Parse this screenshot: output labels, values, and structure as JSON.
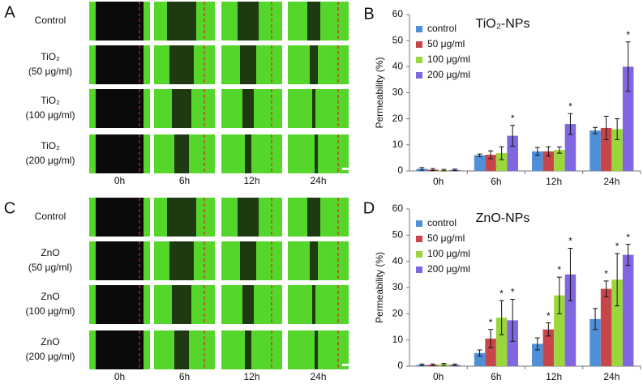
{
  "image_panels": [
    {
      "letter": "A",
      "rows": [
        [
          "Control"
        ],
        [
          "TiO₂",
          "(50 μg/ml)"
        ],
        [
          "TiO₂",
          "(100 μg/ml)"
        ],
        [
          "TiO₂",
          "(200 μg/ml)"
        ]
      ],
      "times": [
        "0h",
        "6h",
        "12h",
        "24h"
      ]
    },
    {
      "letter": "C",
      "rows": [
        [
          "Control"
        ],
        [
          "ZnO",
          "(50 μg/ml)"
        ],
        [
          "ZnO",
          "(100 μg/ml)"
        ],
        [
          "ZnO",
          "(200 μg/ml)"
        ]
      ],
      "times": [
        "0h",
        "6h",
        "12h",
        "24h"
      ]
    }
  ],
  "chart_data": [
    {
      "type": "bar",
      "letter": "B",
      "title": "TiO₂-NPs",
      "ylabel": "Permeability (%)",
      "categories": [
        "0h",
        "6h",
        "12h",
        "24h"
      ],
      "series": [
        {
          "name": "control",
          "color": "#4f8fd8",
          "values": [
            0.8,
            6,
            7.5,
            15.5
          ],
          "errors": [
            0.5,
            0.5,
            1.5,
            1.2
          ]
        },
        {
          "name": "50 μg/ml",
          "color": "#c8454a",
          "values": [
            0.5,
            6.2,
            7.5,
            16.5
          ],
          "errors": [
            0.4,
            1.5,
            1.8,
            4.5
          ]
        },
        {
          "name": "100 μg/ml",
          "color": "#9ad63c",
          "values": [
            0.3,
            6.8,
            8,
            16
          ],
          "errors": [
            0.3,
            2.5,
            1.2,
            4
          ]
        },
        {
          "name": "200 μg/ml",
          "color": "#8066e0",
          "values": [
            0.4,
            13.5,
            18,
            40
          ],
          "errors": [
            0.3,
            4,
            4,
            9.5
          ]
        }
      ],
      "annotations": [
        {
          "text": "*",
          "series": 3,
          "category": 1
        },
        {
          "text": "*",
          "series": 3,
          "category": 2
        },
        {
          "text": "*",
          "series": 3,
          "category": 3
        }
      ],
      "ylim": [
        0,
        60
      ],
      "yticks": [
        0,
        10,
        20,
        30,
        40,
        50,
        60
      ],
      "legend": "upper left"
    },
    {
      "type": "bar",
      "letter": "D",
      "title": "ZnO-NPs",
      "ylabel": "Permeability (%)",
      "categories": [
        "0h",
        "6h",
        "12h",
        "24h"
      ],
      "series": [
        {
          "name": "control",
          "color": "#4f8fd8",
          "values": [
            0.5,
            5,
            8.5,
            18
          ],
          "errors": [
            0.3,
            1.2,
            2.3,
            4
          ]
        },
        {
          "name": "50 μg/ml",
          "color": "#c8454a",
          "values": [
            0.5,
            10.5,
            14,
            29.5
          ],
          "errors": [
            0.3,
            3.5,
            2.5,
            3
          ]
        },
        {
          "name": "100 μg/ml",
          "color": "#9ad63c",
          "values": [
            0.7,
            18.5,
            27,
            33
          ],
          "errors": [
            0.4,
            6.5,
            7,
            10
          ]
        },
        {
          "name": "200 μg/ml",
          "color": "#8066e0",
          "values": [
            0.5,
            17.5,
            35,
            42.5
          ],
          "errors": [
            0.3,
            8,
            10,
            4
          ]
        }
      ],
      "annotations": [
        {
          "text": "*",
          "series": 1,
          "category": 1
        },
        {
          "text": "*",
          "series": 2,
          "category": 1
        },
        {
          "text": "*",
          "series": 3,
          "category": 1
        },
        {
          "text": "*",
          "series": 1,
          "category": 2
        },
        {
          "text": "*",
          "series": 2,
          "category": 2
        },
        {
          "text": "*",
          "series": 3,
          "category": 2
        },
        {
          "text": "*",
          "series": 1,
          "category": 3
        },
        {
          "text": "*",
          "series": 2,
          "category": 3
        },
        {
          "text": "*",
          "series": 3,
          "category": 3
        }
      ],
      "ylim": [
        0,
        60
      ],
      "yticks": [
        0,
        10,
        20,
        30,
        40,
        50,
        60
      ],
      "legend": "upper left"
    }
  ]
}
